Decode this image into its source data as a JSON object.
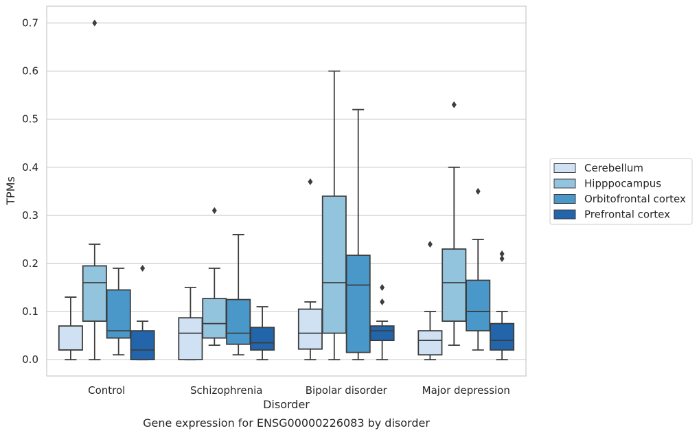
{
  "chart_data": {
    "type": "box",
    "caption": "Gene expression for ENSG00000226083 by disorder",
    "xlabel": "Disorder",
    "ylabel": "TPMs",
    "ylim": [
      -0.034,
      0.735
    ],
    "yticks": [
      0.0,
      0.1,
      0.2,
      0.3,
      0.4,
      0.5,
      0.6,
      0.7
    ],
    "ytick_labels": [
      "0.0",
      "0.1",
      "0.2",
      "0.3",
      "0.4",
      "0.5",
      "0.6",
      "0.7"
    ],
    "grid": "horizontal",
    "legend_position": "outside-right",
    "categories": [
      "Control",
      "Schizophrenia",
      "Bipolar disorder",
      "Major depression"
    ],
    "series": [
      {
        "name": "Cerebellum",
        "color": "#cfe1f2",
        "boxes": [
          {
            "whislo": 0.0,
            "q1": 0.02,
            "med": 0.02,
            "q3": 0.07,
            "whishi": 0.13,
            "fliers": []
          },
          {
            "whislo": 0.0,
            "q1": 0.0,
            "med": 0.055,
            "q3": 0.087,
            "whishi": 0.15,
            "fliers": []
          },
          {
            "whislo": 0.0,
            "q1": 0.022,
            "med": 0.055,
            "q3": 0.105,
            "whishi": 0.12,
            "fliers": [
              0.37
            ]
          },
          {
            "whislo": 0.0,
            "q1": 0.01,
            "med": 0.04,
            "q3": 0.06,
            "whishi": 0.1,
            "fliers": [
              0.24
            ]
          }
        ]
      },
      {
        "name": "Hipppocampus",
        "color": "#93c4de",
        "boxes": [
          {
            "whislo": 0.0,
            "q1": 0.08,
            "med": 0.16,
            "q3": 0.195,
            "whishi": 0.24,
            "fliers": [
              0.7
            ]
          },
          {
            "whislo": 0.03,
            "q1": 0.045,
            "med": 0.075,
            "q3": 0.127,
            "whishi": 0.19,
            "fliers": [
              0.31
            ]
          },
          {
            "whislo": 0.0,
            "q1": 0.055,
            "med": 0.16,
            "q3": 0.34,
            "whishi": 0.6,
            "fliers": []
          },
          {
            "whislo": 0.03,
            "q1": 0.08,
            "med": 0.16,
            "q3": 0.23,
            "whishi": 0.4,
            "fliers": [
              0.53
            ]
          }
        ]
      },
      {
        "name": "Orbitofrontal cortex",
        "color": "#4a98c9",
        "boxes": [
          {
            "whislo": 0.01,
            "q1": 0.045,
            "med": 0.06,
            "q3": 0.145,
            "whishi": 0.19,
            "fliers": []
          },
          {
            "whislo": 0.01,
            "q1": 0.032,
            "med": 0.055,
            "q3": 0.125,
            "whishi": 0.26,
            "fliers": []
          },
          {
            "whislo": 0.0,
            "q1": 0.015,
            "med": 0.155,
            "q3": 0.217,
            "whishi": 0.52,
            "fliers": []
          },
          {
            "whislo": 0.02,
            "q1": 0.06,
            "med": 0.1,
            "q3": 0.165,
            "whishi": 0.25,
            "fliers": [
              0.35
            ]
          }
        ]
      },
      {
        "name": "Prefrontal cortex",
        "color": "#2265ab",
        "boxes": [
          {
            "whislo": 0.0,
            "q1": 0.0,
            "med": 0.02,
            "q3": 0.06,
            "whishi": 0.08,
            "fliers": [
              0.19
            ]
          },
          {
            "whislo": 0.0,
            "q1": 0.02,
            "med": 0.035,
            "q3": 0.067,
            "whishi": 0.11,
            "fliers": []
          },
          {
            "whislo": 0.0,
            "q1": 0.04,
            "med": 0.06,
            "q3": 0.07,
            "whishi": 0.08,
            "fliers": [
              0.12,
              0.15
            ]
          },
          {
            "whislo": 0.0,
            "q1": 0.02,
            "med": 0.04,
            "q3": 0.075,
            "whishi": 0.1,
            "fliers": [
              0.21,
              0.22
            ]
          }
        ]
      }
    ]
  }
}
